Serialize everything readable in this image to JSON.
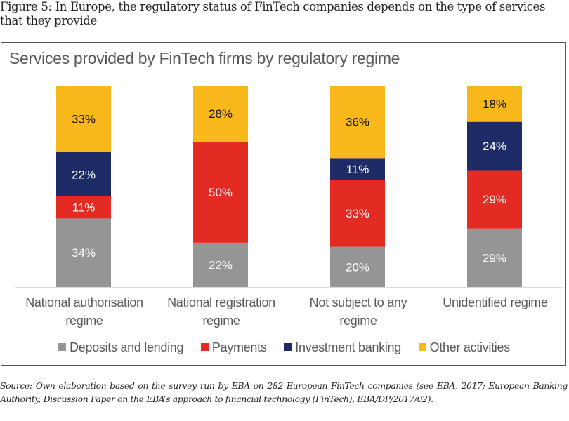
{
  "figure": {
    "caption": "Figure 5: In Europe, the regulatory status of FinTech companies depends on the type of services that they provide",
    "source": "Source: Own elaboration based on the survey run by EBA on 282 European FinTech companies (see EBA, 2017; European Banking Authority, Discussion Paper on the EBA’s approach to financial technology (FinTech), EBA/DP/2017/02)."
  },
  "chart_data": {
    "type": "bar",
    "stacked": true,
    "title": "Services provided by FinTech firms by regulatory regime",
    "xlabel": "",
    "ylabel": "",
    "ylim": [
      0,
      100
    ],
    "grid": false,
    "legend_position": "bottom",
    "categories": [
      "National authorisation regime",
      "National registration regime",
      "Not subject to any regime",
      "Unidentified regime"
    ],
    "series": [
      {
        "name": "Deposits and lending",
        "color": "#959595",
        "label_color": "#ffffff",
        "values": [
          34,
          22,
          20,
          29
        ],
        "labels": [
          "34%",
          "22%",
          "20%",
          "29%"
        ]
      },
      {
        "name": "Payments",
        "color": "#e32b23",
        "label_color": "#ffffff",
        "values": [
          11,
          50,
          33,
          29
        ],
        "labels": [
          "11%",
          "50%",
          "33%",
          "29%"
        ]
      },
      {
        "name": "Investment banking",
        "color": "#1d2b67",
        "label_color": "#ffffff",
        "values": [
          22,
          0,
          11,
          24
        ],
        "labels": [
          "22%",
          "",
          "11%",
          "24%"
        ]
      },
      {
        "name": "Other activities",
        "color": "#f8b81c",
        "label_color": "#111111",
        "values": [
          33,
          28,
          36,
          18
        ],
        "labels": [
          "33%",
          "28%",
          "36%",
          "18%"
        ]
      }
    ]
  }
}
